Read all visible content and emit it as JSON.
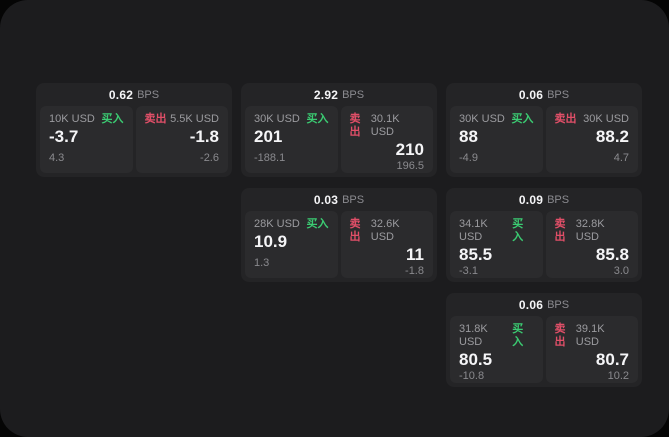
{
  "labels": {
    "bps_unit": "BPS",
    "buy": "买入",
    "sell": "卖出"
  },
  "colors": {
    "outer_background": "#050505",
    "window_background": "#1c1c1e",
    "card_background": "#242426",
    "panel_background": "#2b2b2d",
    "buy_green": "#3bcb72",
    "sell_red": "#e14f68",
    "primary_text": "#f5f5f7",
    "muted_text": "#8b8b90"
  },
  "cards": [
    {
      "bps": "0.62",
      "buy": {
        "amount": "10K USD",
        "price": "-3.7",
        "change": "4.3"
      },
      "sell": {
        "amount": "5.5K USD",
        "price": "-1.8",
        "change": "-2.6"
      }
    },
    {
      "bps": "2.92",
      "buy": {
        "amount": "30K USD",
        "price": "201",
        "change": "-188.1"
      },
      "sell": {
        "amount": "30.1K USD",
        "price": "210",
        "change": "196.5"
      }
    },
    {
      "bps": "0.06",
      "buy": {
        "amount": "30K USD",
        "price": "88",
        "change": "-4.9"
      },
      "sell": {
        "amount": "30K USD",
        "price": "88.2",
        "change": "4.7"
      }
    },
    {
      "bps": "0.03",
      "buy": {
        "amount": "28K USD",
        "price": "10.9",
        "change": "1.3"
      },
      "sell": {
        "amount": "32.6K USD",
        "price": "11",
        "change": "-1.8"
      }
    },
    {
      "bps": "0.09",
      "buy": {
        "amount": "34.1K USD",
        "price": "85.5",
        "change": "-3.1"
      },
      "sell": {
        "amount": "32.8K USD",
        "price": "85.8",
        "change": "3.0"
      }
    },
    {
      "bps": "0.06",
      "buy": {
        "amount": "31.8K USD",
        "price": "80.5",
        "change": "-10.8"
      },
      "sell": {
        "amount": "39.1K USD",
        "price": "80.7",
        "change": "10.2"
      }
    }
  ]
}
